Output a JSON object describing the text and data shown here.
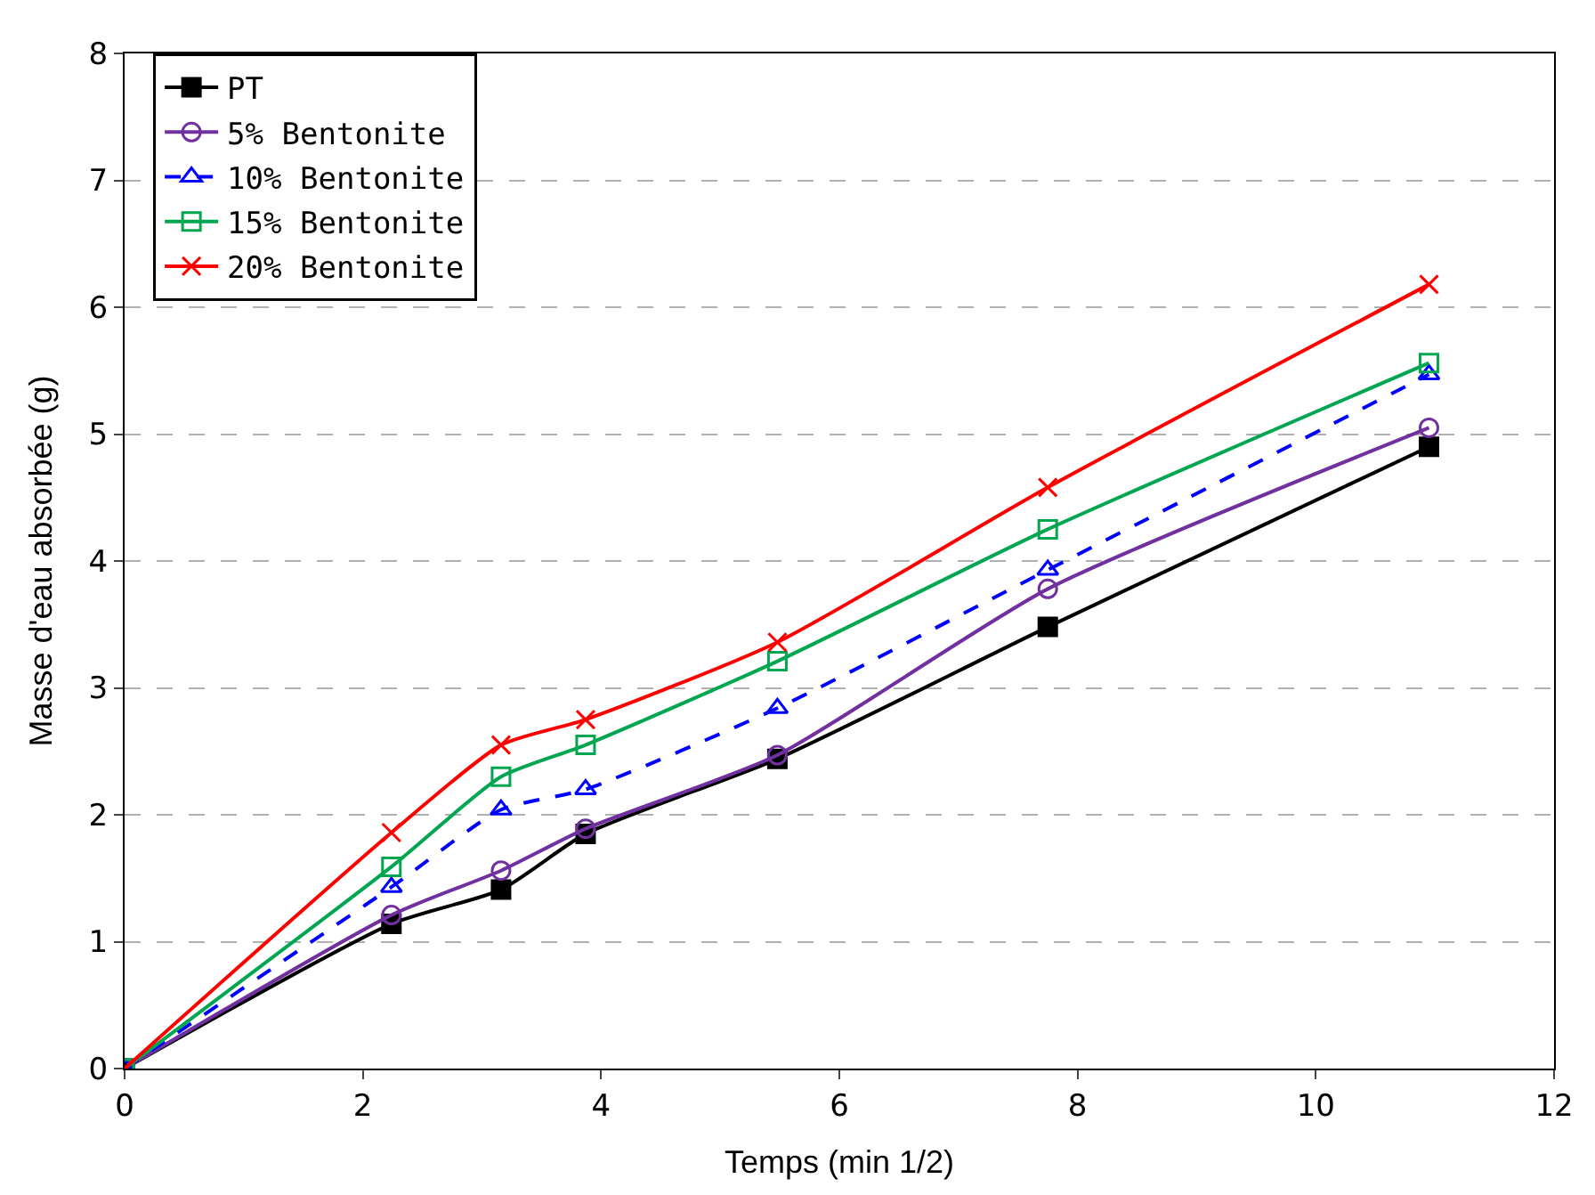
{
  "chart_data": {
    "type": "line",
    "xlabel": "Temps (min 1/2)",
    "ylabel": "Masse d'eau absorbée (g)",
    "x": [
      0,
      2.24,
      3.16,
      3.87,
      5.48,
      7.75,
      10.95
    ],
    "xlim": [
      0,
      12
    ],
    "xticks": [
      0,
      2,
      4,
      6,
      8,
      10,
      12
    ],
    "ylim": [
      0,
      8
    ],
    "yticks": [
      0,
      1,
      2,
      3,
      4,
      5,
      6,
      7,
      8
    ],
    "grid": "y",
    "legend": "top left",
    "series": [
      {
        "name": "PT",
        "color": "#000000",
        "marker": "square",
        "line_style": "solid",
        "values": [
          0,
          1.14,
          1.41,
          1.85,
          2.44,
          3.48,
          4.9
        ]
      },
      {
        "name": "5% Bentonite",
        "color": "#7030a0",
        "marker": "circle",
        "line_style": "solid",
        "values": [
          0,
          1.21,
          1.56,
          1.89,
          2.47,
          3.78,
          5.05
        ]
      },
      {
        "name": "10% Bentonite",
        "color": "#0000ff",
        "marker": "triangle",
        "line_style": "dashed",
        "values": [
          0,
          1.43,
          2.04,
          2.2,
          2.84,
          3.93,
          5.47
        ]
      },
      {
        "name": "15% Bentonite",
        "color": "#00a650",
        "marker": "square",
        "line_style": "solid",
        "values": [
          0,
          1.59,
          2.3,
          2.55,
          3.21,
          4.25,
          5.56
        ]
      },
      {
        "name": "20% Bentonite",
        "color": "#ff0000",
        "marker": "cross",
        "line_style": "solid",
        "values": [
          0,
          1.86,
          2.55,
          2.75,
          3.36,
          4.58,
          6.18
        ]
      }
    ]
  }
}
